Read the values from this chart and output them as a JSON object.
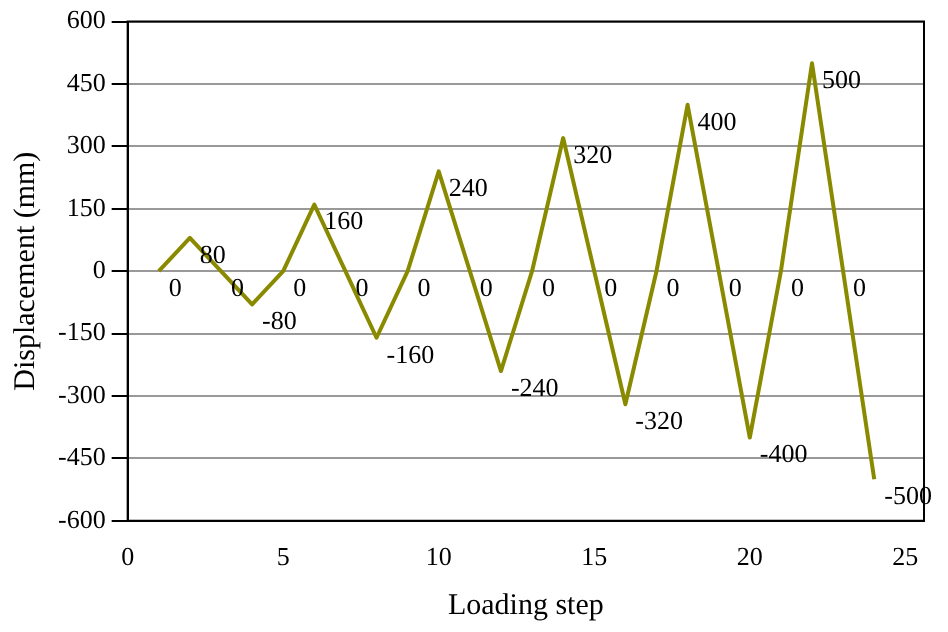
{
  "chart_data": {
    "type": "line",
    "xlabel": "Loading step",
    "ylabel": "Displacement (mm)",
    "x": [
      1,
      2,
      3,
      4,
      5,
      6,
      7,
      8,
      9,
      10,
      11,
      12,
      13,
      14,
      15,
      16,
      17,
      18,
      19,
      20,
      21,
      22,
      23,
      24
    ],
    "values": [
      0,
      80,
      0,
      -80,
      0,
      160,
      0,
      -160,
      0,
      240,
      0,
      -240,
      0,
      320,
      0,
      -320,
      0,
      400,
      0,
      -400,
      0,
      500,
      0,
      -500
    ],
    "color": "#8a8a00",
    "xlim": [
      0,
      25.6
    ],
    "xticks": [
      0,
      5,
      10,
      15,
      20,
      25
    ],
    "ylim": [
      -600,
      600
    ],
    "yticks": [
      -600,
      -450,
      -300,
      -150,
      0,
      150,
      300,
      450,
      600
    ],
    "grid": "y",
    "data_labels": true,
    "legend": false,
    "marker": "none",
    "line_style": "solid"
  }
}
